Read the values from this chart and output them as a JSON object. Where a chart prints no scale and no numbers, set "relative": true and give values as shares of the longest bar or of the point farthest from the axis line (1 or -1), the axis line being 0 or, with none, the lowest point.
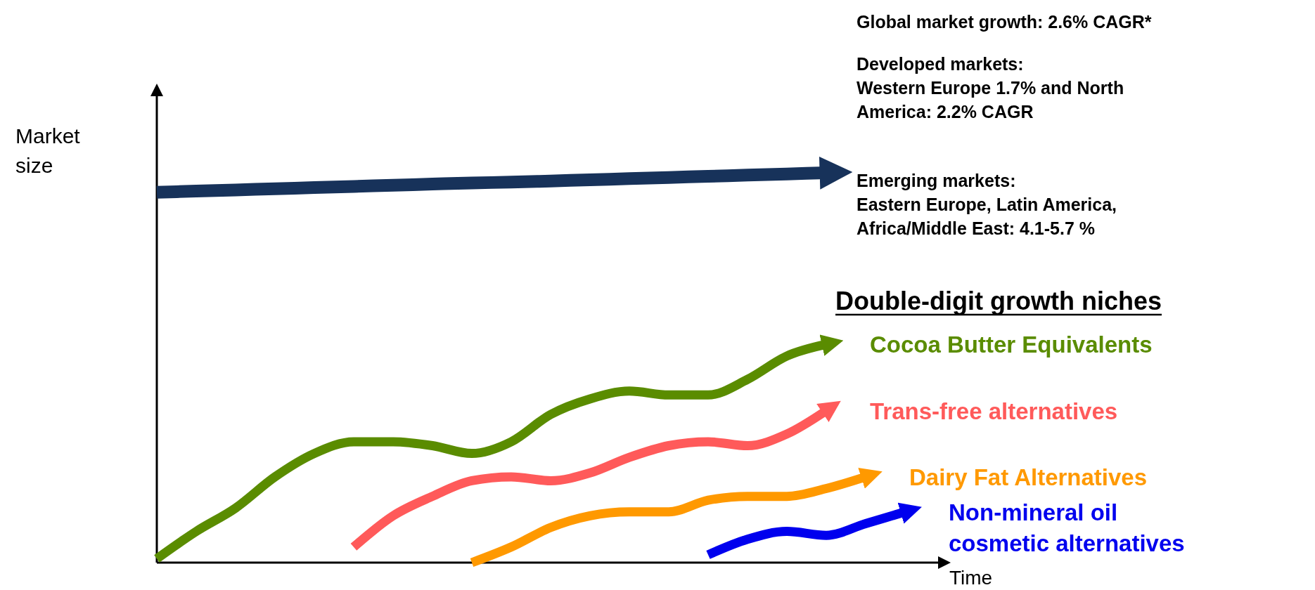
{
  "chart_data": {
    "type": "line",
    "relative": true,
    "ylabel": "Market size",
    "xlabel": "Time",
    "legend_title": "Double-digit growth niches",
    "categories": [
      null,
      null,
      null,
      null,
      null,
      null,
      null,
      null,
      null,
      null,
      null,
      null,
      null,
      null,
      null,
      null,
      null,
      null,
      null,
      null
    ],
    "series": [
      {
        "color": "#17325a",
        "values": [
          0.95,
          0.953,
          0.956,
          0.959,
          0.962,
          0.965,
          0.968,
          0.971,
          0.974,
          0.976,
          0.979,
          0.982,
          0.985,
          0.988,
          0.991,
          0.994,
          0.997,
          1.0,
          null,
          null
        ]
      },
      {
        "name": "Cocoa Butter Equivalents",
        "color": "#5a8c00",
        "values": [
          0.01,
          0.08,
          0.14,
          0.22,
          0.28,
          0.31,
          0.31,
          0.3,
          0.28,
          0.31,
          0.38,
          0.42,
          0.44,
          0.43,
          0.43,
          0.47,
          0.53,
          0.56,
          null,
          null
        ]
      },
      {
        "name": "Trans-free alternatives",
        "color": "#ff5a5a",
        "values": [
          null,
          null,
          null,
          null,
          null,
          0.04,
          0.12,
          0.17,
          0.21,
          0.22,
          0.21,
          0.23,
          0.27,
          0.3,
          0.31,
          0.3,
          0.33,
          0.39,
          null,
          null
        ]
      },
      {
        "name": "Dairy Fat Alternatives",
        "color": "#ff9900",
        "values": [
          null,
          null,
          null,
          null,
          null,
          null,
          null,
          null,
          0.0,
          0.04,
          0.09,
          0.12,
          0.13,
          0.13,
          0.16,
          0.17,
          0.17,
          0.19,
          0.22,
          null
        ]
      },
      {
        "name": "Non-mineral oil cosmetic alternatives",
        "color": "#0000ee",
        "values": [
          null,
          null,
          null,
          null,
          null,
          null,
          null,
          null,
          null,
          null,
          null,
          null,
          null,
          null,
          0.02,
          0.06,
          0.08,
          0.07,
          0.1,
          0.13
        ]
      }
    ],
    "annotations": [
      "Global market growth: 2.6% CAGR*",
      "Developed markets:\nWestern Europe 1.7% and North\nAmerica: 2.2% CAGR",
      "Emerging markets:\nEastern Europe, Latin America,\nAfrica/Middle East: 4.1-5.7 %"
    ]
  }
}
